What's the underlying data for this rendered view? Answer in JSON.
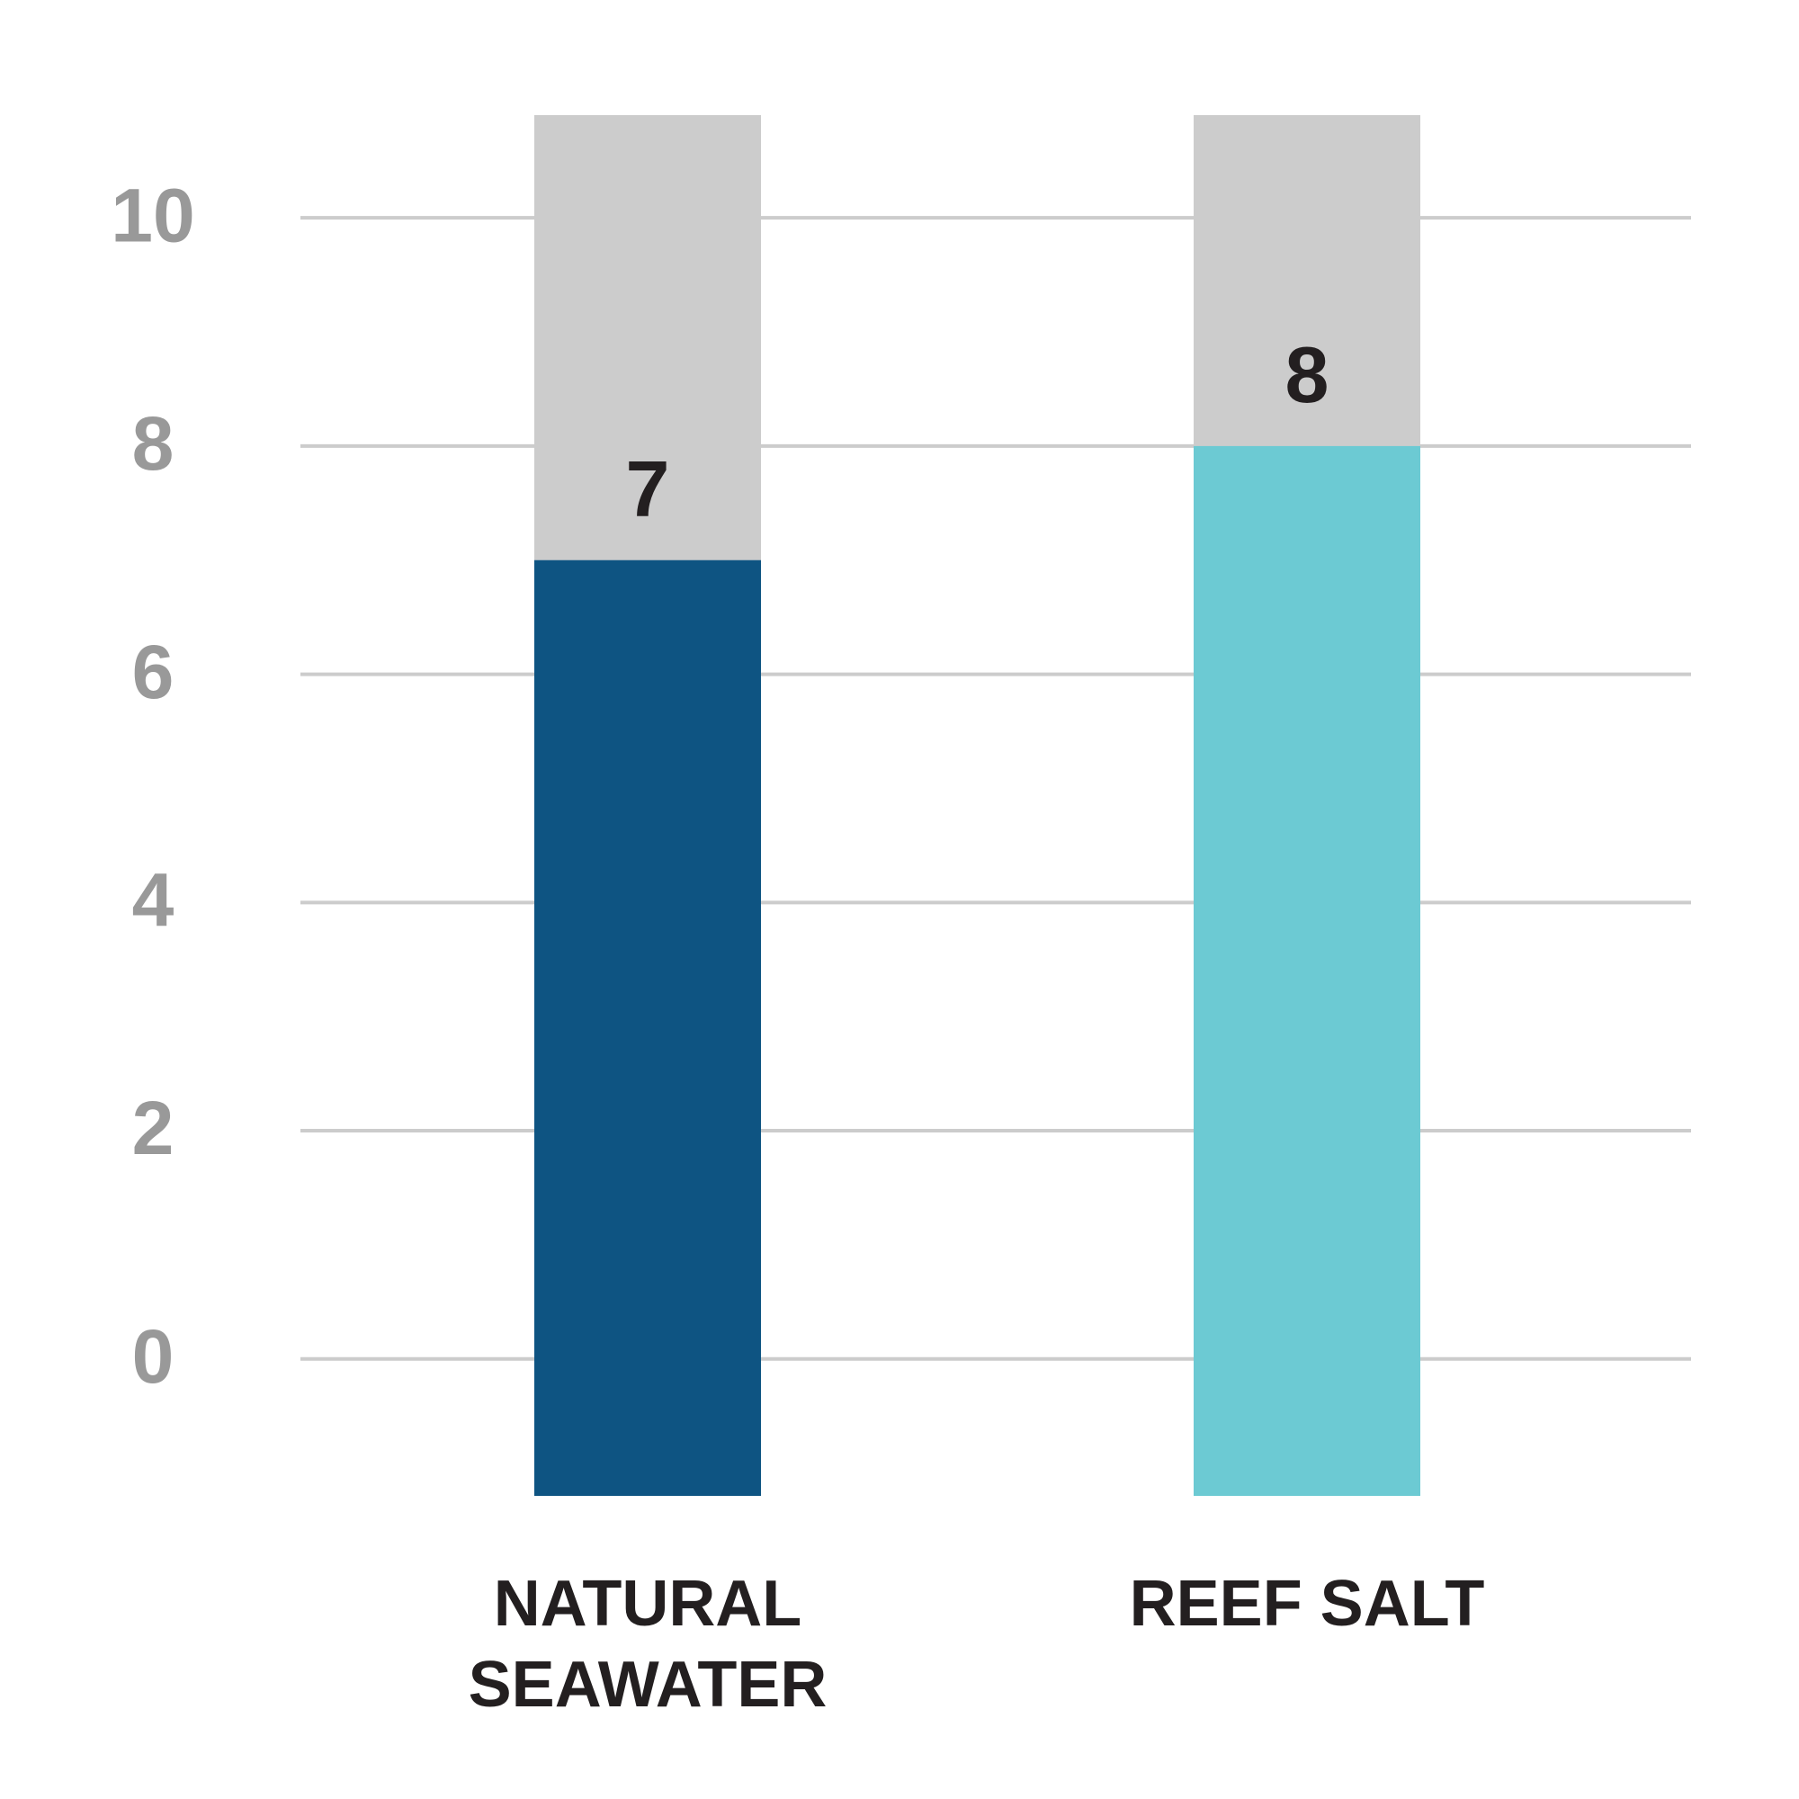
{
  "chart_data": {
    "type": "bar",
    "categories": [
      "NATURAL SEAWATER",
      "REEF SALT"
    ],
    "series": [
      {
        "values": [
          7,
          8
        ],
        "colors": [
          "#0e5482",
          "#6ccad3"
        ]
      }
    ],
    "track_color": "#cccccc",
    "ylim": [
      -1.2,
      10.9
    ],
    "yticks": [
      0,
      2,
      4,
      6,
      8,
      10
    ],
    "grid": true
  }
}
